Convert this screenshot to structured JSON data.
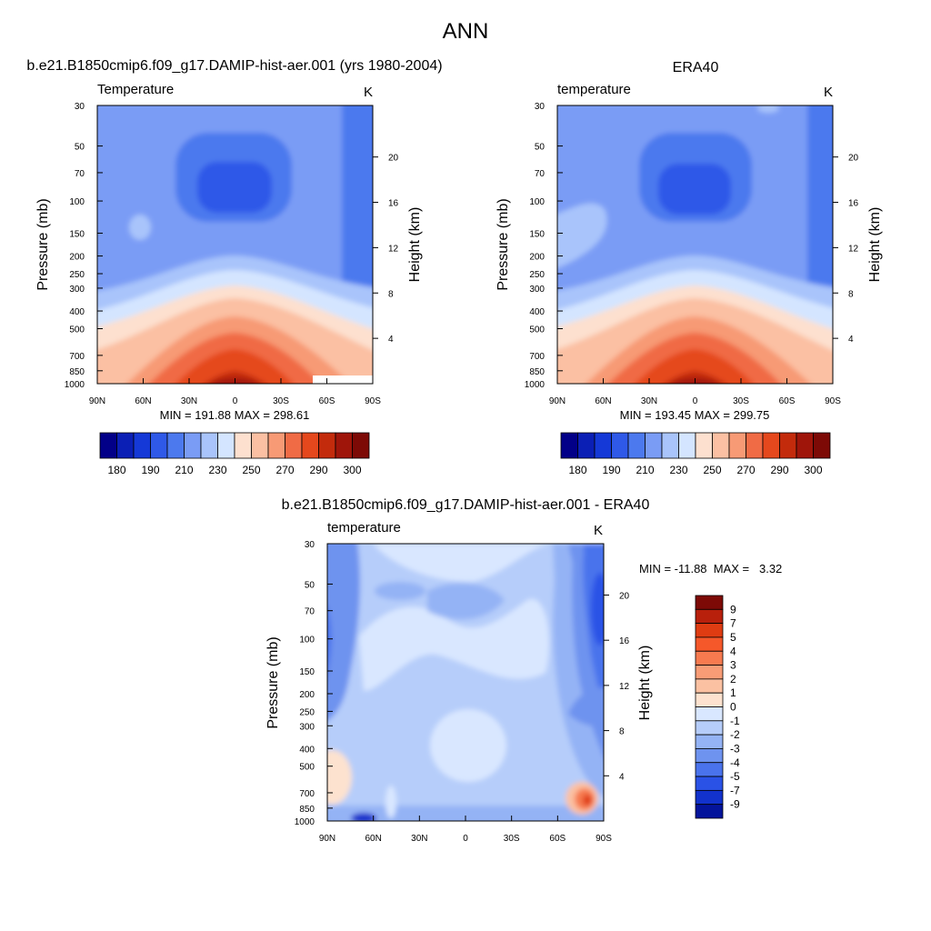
{
  "title": "ANN",
  "colors": {
    "abs_scale": [
      "#020088",
      "#0b1fb5",
      "#1539d7",
      "#2f59e8",
      "#4c79ee",
      "#7a9cf5",
      "#a9c4fb",
      "#d4e5ff",
      "#fde0cf",
      "#fbc0a3",
      "#f79a75",
      "#f06b45",
      "#e5481d",
      "#c32b0c",
      "#9f150a",
      "#7d0a06"
    ],
    "diff_scale": [
      "#7d0a06",
      "#b8200c",
      "#df3c12",
      "#f5582a",
      "#f77a4f",
      "#f89c76",
      "#fbc1a2",
      "#fde2cf",
      "#d9e7ff",
      "#b6cdfa",
      "#94b3f5",
      "#6e93ef",
      "#4a73ec",
      "#2a52e6",
      "#1232cc",
      "#04149b"
    ]
  },
  "chart_data": [
    {
      "type": "contour",
      "id": "model",
      "title": "b.e21.B1850cmip6.f09_g17.DAMIP-hist-aer.001 (yrs 1980-2004)",
      "variable": "Temperature",
      "units": "K",
      "xlabel": "",
      "ylabel": "Pressure (mb)",
      "y2label": "Height (km)",
      "x_ticks": [
        "90N",
        "60N",
        "30N",
        "0",
        "30S",
        "60S",
        "90S"
      ],
      "y_ticks": [
        "30",
        "50",
        "70",
        "100",
        "150",
        "200",
        "250",
        "300",
        "400",
        "500",
        "700",
        "850",
        "1000"
      ],
      "y2_ticks": [
        "20",
        "16",
        "12",
        "8",
        "4"
      ],
      "stats": "MIN = 191.88  MAX = 298.61",
      "min": 191.88,
      "max": 298.61,
      "colorbar_labels": [
        "180",
        "190",
        "210",
        "230",
        "250",
        "270",
        "290",
        "300"
      ]
    },
    {
      "type": "contour",
      "id": "obs",
      "title": "ERA40",
      "variable": "temperature",
      "units": "K",
      "xlabel": "",
      "ylabel": "Pressure (mb)",
      "y2label": "Height (km)",
      "x_ticks": [
        "90N",
        "60N",
        "30N",
        "0",
        "30S",
        "60S",
        "90S"
      ],
      "y_ticks": [
        "30",
        "50",
        "70",
        "100",
        "150",
        "200",
        "250",
        "300",
        "400",
        "500",
        "700",
        "850",
        "1000"
      ],
      "y2_ticks": [
        "20",
        "16",
        "12",
        "8",
        "4"
      ],
      "stats": "MIN = 193.45  MAX = 299.75",
      "min": 193.45,
      "max": 299.75,
      "colorbar_labels": [
        "180",
        "190",
        "210",
        "230",
        "250",
        "270",
        "290",
        "300"
      ]
    },
    {
      "type": "contour",
      "id": "diff",
      "title": "b.e21.B1850cmip6.f09_g17.DAMIP-hist-aer.001 - ERA40",
      "variable": "temperature",
      "units": "K",
      "xlabel": "",
      "ylabel": "Pressure (mb)",
      "y2label": "Height (km)",
      "x_ticks": [
        "90N",
        "60N",
        "30N",
        "0",
        "30S",
        "60S",
        "90S"
      ],
      "y_ticks": [
        "30",
        "50",
        "70",
        "100",
        "150",
        "200",
        "250",
        "300",
        "400",
        "500",
        "700",
        "850",
        "1000"
      ],
      "y2_ticks": [
        "20",
        "16",
        "12",
        "8",
        "4"
      ],
      "stats": "MIN = -11.88  MAX =   3.32",
      "min": -11.88,
      "max": 3.32,
      "colorbar_labels": [
        "9",
        "7",
        "5",
        "4",
        "3",
        "2",
        "1",
        "0",
        "-1",
        "-2",
        "-3",
        "-4",
        "-5",
        "-7",
        "-9"
      ]
    }
  ]
}
